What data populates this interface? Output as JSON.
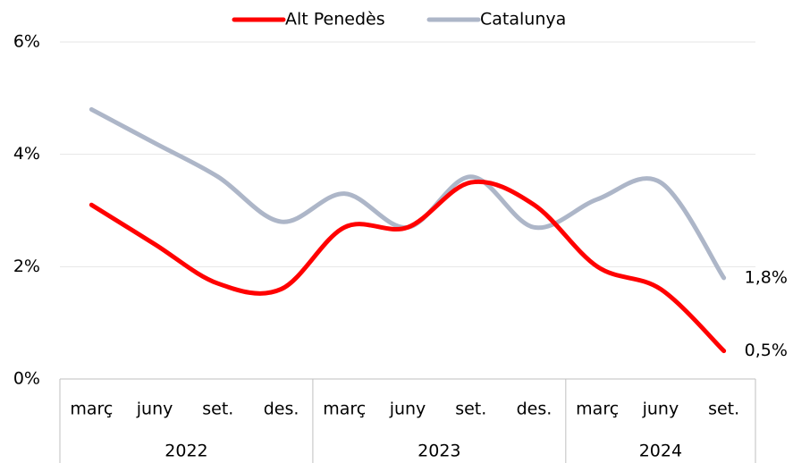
{
  "chart_data": {
    "type": "line",
    "categories": [
      "març",
      "juny",
      "set.",
      "des.",
      "març",
      "juny",
      "set.",
      "des.",
      "març",
      "juny",
      "set."
    ],
    "category_groups": [
      {
        "label": "2022",
        "size": 4
      },
      {
        "label": "2023",
        "size": 4
      },
      {
        "label": "2024",
        "size": 3
      }
    ],
    "series": [
      {
        "name": "Alt Penedès",
        "color": "#ff0000",
        "values": [
          3.1,
          2.4,
          1.7,
          1.6,
          2.7,
          2.7,
          3.5,
          3.1,
          2.0,
          1.6,
          0.5
        ],
        "value_labels": [
          null,
          null,
          null,
          null,
          null,
          null,
          null,
          null,
          null,
          null,
          "0,5%"
        ]
      },
      {
        "name": "Catalunya",
        "color": "#adb6c8",
        "values": [
          4.8,
          4.2,
          3.6,
          2.8,
          3.3,
          2.7,
          3.6,
          2.7,
          3.2,
          3.5,
          1.8
        ],
        "value_labels": [
          null,
          null,
          null,
          null,
          null,
          null,
          null,
          null,
          null,
          null,
          "1,8%"
        ]
      }
    ],
    "ylim": [
      0,
      6
    ],
    "yticks": [
      {
        "value": 0,
        "label": "0%"
      },
      {
        "value": 2,
        "label": "2%"
      },
      {
        "value": 4,
        "label": "4%"
      },
      {
        "value": 6,
        "label": "6%"
      }
    ],
    "grid": true,
    "legend": "top"
  }
}
